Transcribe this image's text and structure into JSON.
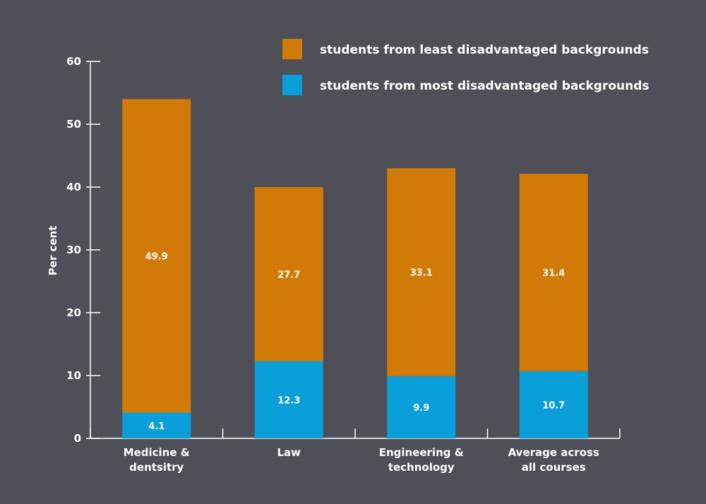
{
  "chart_data": {
    "type": "bar",
    "stacked": true,
    "ylabel": "Per cent",
    "ylim": [
      0,
      60
    ],
    "yticks": [
      0,
      10,
      20,
      30,
      40,
      50,
      60
    ],
    "categories": [
      [
        "Medicine &",
        "dentsitry"
      ],
      [
        "Law"
      ],
      [
        "Engineering &",
        "technology"
      ],
      [
        "Average across",
        "all courses"
      ]
    ],
    "series": [
      {
        "name": "students from most disadvantaged backgrounds",
        "color": "#0a9fd8",
        "values": [
          4.1,
          12.3,
          9.9,
          10.7
        ],
        "labels": [
          "4.1",
          "12.3",
          "9.9",
          "10.7"
        ]
      },
      {
        "name": "students from least disadvantaged backgrounds",
        "color": "#d17a07",
        "values": [
          49.9,
          27.7,
          33.1,
          31.4
        ],
        "labels": [
          "49.9",
          "27.7",
          "33.1",
          "31.4"
        ]
      }
    ],
    "legend": {
      "position": "top-right",
      "order": [
        1,
        0
      ]
    },
    "grid": false
  }
}
